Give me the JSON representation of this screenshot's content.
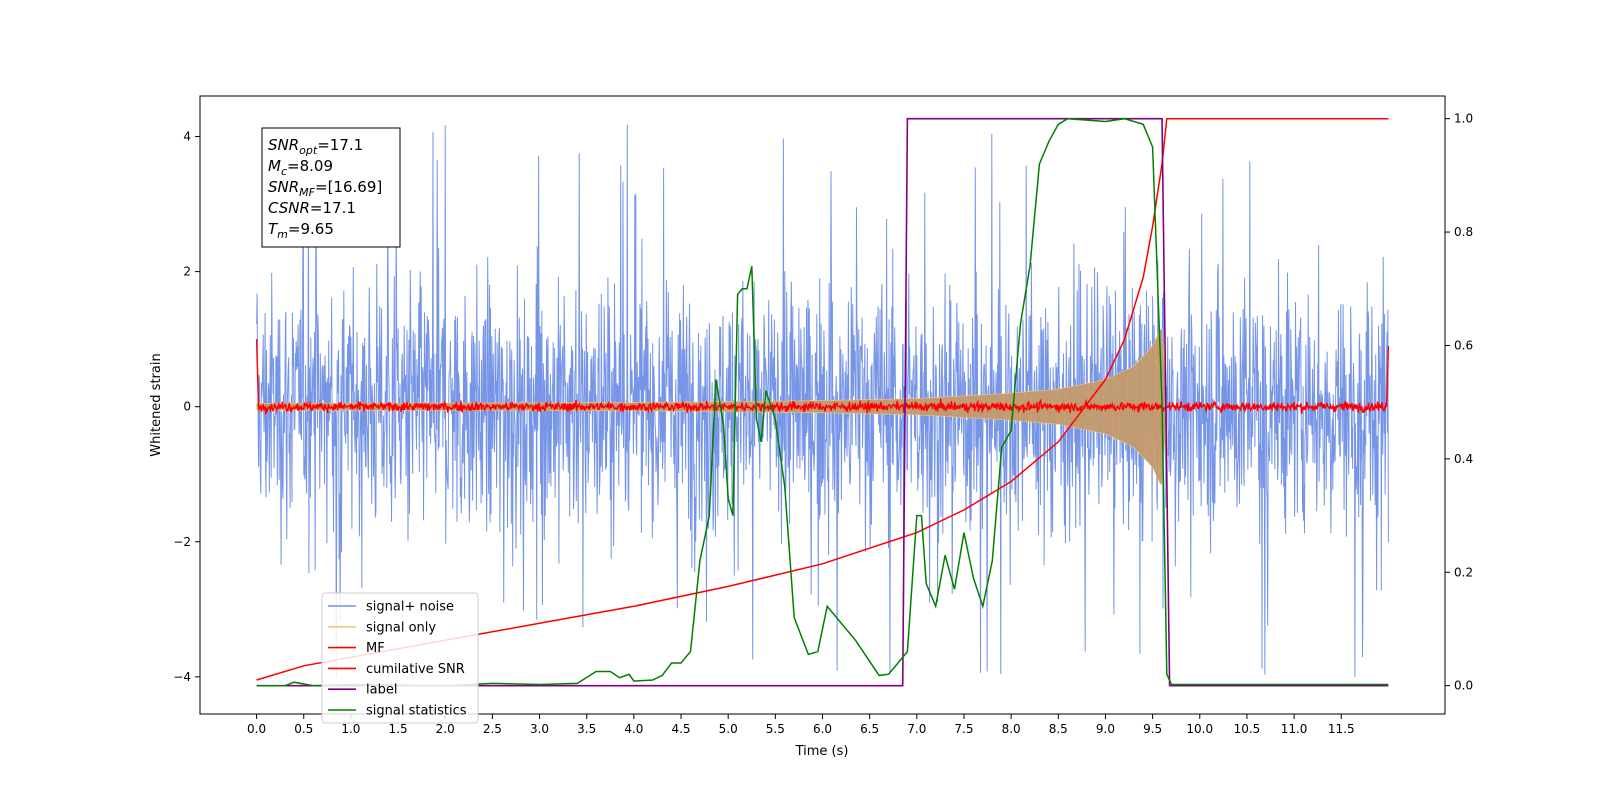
{
  "chart_data": {
    "type": "line",
    "xlabel": "Time (s)",
    "ylabel": "Whitened strain",
    "xlim": [
      -0.6,
      12.6
    ],
    "ylim": [
      -4.55,
      4.6
    ],
    "y2lim": [
      -0.05,
      1.04
    ],
    "xticks": [
      "0.0",
      "0.5",
      "1.0",
      "1.5",
      "2.0",
      "2.5",
      "3.0",
      "3.5",
      "4.0",
      "4.5",
      "5.0",
      "5.5",
      "6.0",
      "6.5",
      "7.0",
      "7.5",
      "8.0",
      "8.5",
      "9.0",
      "9.5",
      "10.0",
      "10.5",
      "11.0",
      "11.5"
    ],
    "yticks": [
      "−4",
      "−2",
      "0",
      "2",
      "4"
    ],
    "y2ticks": [
      "0.0",
      "0.2",
      "0.4",
      "0.6",
      "0.8",
      "1.0"
    ],
    "annotation": {
      "lines": [
        {
          "sym": "SNR",
          "sub": "opt",
          "val": "=17.1"
        },
        {
          "sym": "M",
          "sub": "c",
          "val": "=8.09"
        },
        {
          "sym": "SNR",
          "sub": "MF",
          "val": "=[16.69]"
        },
        {
          "sym": "CSNR",
          "sub": "",
          "val": "=17.1"
        },
        {
          "sym": "T",
          "sub": "m",
          "val": "=9.65"
        }
      ]
    },
    "legend": {
      "position": "lower-left",
      "entries": [
        {
          "label": "signal+ noise",
          "color": "#6f8fe6"
        },
        {
          "label": "signal only",
          "color": "#f5c77e"
        },
        {
          "label": "MF",
          "color": "#ff0000"
        },
        {
          "label": "cumilative SNR",
          "color": "#ff0000"
        },
        {
          "label": "label",
          "color": "#800080"
        },
        {
          "label": "signal statistics",
          "color": "#008000"
        }
      ]
    },
    "series": [
      {
        "name": "signal+ noise",
        "axis": "left",
        "style": "noise band",
        "x_range": [
          0,
          12
        ],
        "amplitude": 1.3,
        "peak": 4.2,
        "min": -4.0
      },
      {
        "name": "signal only",
        "axis": "left",
        "style": "chirp envelope",
        "x_range": [
          0,
          9.65
        ],
        "envelope": [
          [
            0,
            0.05
          ],
          [
            4,
            0.06
          ],
          [
            6,
            0.09
          ],
          [
            7,
            0.12
          ],
          [
            8,
            0.2
          ],
          [
            8.5,
            0.26
          ],
          [
            9,
            0.4
          ],
          [
            9.3,
            0.6
          ],
          [
            9.5,
            0.9
          ],
          [
            9.6,
            1.2
          ],
          [
            9.65,
            0
          ]
        ]
      },
      {
        "name": "MF",
        "axis": "left",
        "style": "noise line",
        "x_range": [
          0,
          12
        ],
        "baseline": 0.0,
        "amplitude": 0.08,
        "edges": {
          "start": 1.0,
          "end": 0.9
        }
      },
      {
        "name": "cumilative SNR",
        "axis": "right",
        "points": [
          [
            0,
            0.01
          ],
          [
            0.5,
            0.035
          ],
          [
            1,
            0.05
          ],
          [
            2,
            0.08
          ],
          [
            3,
            0.11
          ],
          [
            4,
            0.14
          ],
          [
            5,
            0.175
          ],
          [
            6,
            0.215
          ],
          [
            7,
            0.27
          ],
          [
            7.5,
            0.31
          ],
          [
            8,
            0.36
          ],
          [
            8.5,
            0.43
          ],
          [
            9,
            0.54
          ],
          [
            9.2,
            0.61
          ],
          [
            9.4,
            0.72
          ],
          [
            9.5,
            0.81
          ],
          [
            9.6,
            0.92
          ],
          [
            9.65,
            1.0
          ],
          [
            12,
            1.0
          ]
        ]
      },
      {
        "name": "label",
        "axis": "right",
        "points": [
          [
            0,
            0
          ],
          [
            6.85,
            0
          ],
          [
            6.9,
            1.0
          ],
          [
            9.6,
            1.0
          ],
          [
            9.68,
            0
          ],
          [
            12,
            0
          ]
        ]
      },
      {
        "name": "signal statistics",
        "axis": "right",
        "points": [
          [
            0,
            0
          ],
          [
            0.3,
            0.0
          ],
          [
            0.4,
            0.006
          ],
          [
            0.6,
            0
          ],
          [
            1.0,
            0.002
          ],
          [
            2,
            0.0
          ],
          [
            2.5,
            0.004
          ],
          [
            3,
            0.002
          ],
          [
            3.4,
            0.004
          ],
          [
            3.6,
            0.025
          ],
          [
            3.75,
            0.025
          ],
          [
            3.85,
            0.014
          ],
          [
            3.95,
            0.02
          ],
          [
            4.0,
            0.008
          ],
          [
            4.2,
            0.01
          ],
          [
            4.3,
            0.018
          ],
          [
            4.4,
            0.04
          ],
          [
            4.5,
            0.04
          ],
          [
            4.6,
            0.06
          ],
          [
            4.7,
            0.22
          ],
          [
            4.8,
            0.3
          ],
          [
            4.87,
            0.54
          ],
          [
            4.95,
            0.46
          ],
          [
            5.0,
            0.33
          ],
          [
            5.05,
            0.3
          ],
          [
            5.1,
            0.69
          ],
          [
            5.15,
            0.7
          ],
          [
            5.2,
            0.7
          ],
          [
            5.25,
            0.74
          ],
          [
            5.3,
            0.47
          ],
          [
            5.35,
            0.43
          ],
          [
            5.4,
            0.52
          ],
          [
            5.5,
            0.47
          ],
          [
            5.6,
            0.35
          ],
          [
            5.7,
            0.12
          ],
          [
            5.85,
            0.055
          ],
          [
            5.95,
            0.06
          ],
          [
            6.05,
            0.14
          ],
          [
            6.15,
            0.12
          ],
          [
            6.35,
            0.08
          ],
          [
            6.6,
            0.018
          ],
          [
            6.7,
            0.02
          ],
          [
            6.8,
            0.04
          ],
          [
            6.9,
            0.06
          ],
          [
            7.0,
            0.3
          ],
          [
            7.05,
            0.3
          ],
          [
            7.1,
            0.18
          ],
          [
            7.2,
            0.14
          ],
          [
            7.3,
            0.23
          ],
          [
            7.4,
            0.17
          ],
          [
            7.5,
            0.27
          ],
          [
            7.6,
            0.19
          ],
          [
            7.7,
            0.14
          ],
          [
            7.8,
            0.22
          ],
          [
            7.9,
            0.42
          ],
          [
            8.0,
            0.45
          ],
          [
            8.1,
            0.64
          ],
          [
            8.2,
            0.74
          ],
          [
            8.3,
            0.92
          ],
          [
            8.4,
            0.96
          ],
          [
            8.5,
            0.99
          ],
          [
            8.6,
            1.0
          ],
          [
            9.0,
            0.995
          ],
          [
            9.2,
            1.0
          ],
          [
            9.4,
            0.99
          ],
          [
            9.5,
            0.95
          ],
          [
            9.6,
            0.5
          ],
          [
            9.65,
            0.02
          ],
          [
            9.7,
            0.002
          ],
          [
            12,
            0.002
          ]
        ]
      }
    ]
  }
}
